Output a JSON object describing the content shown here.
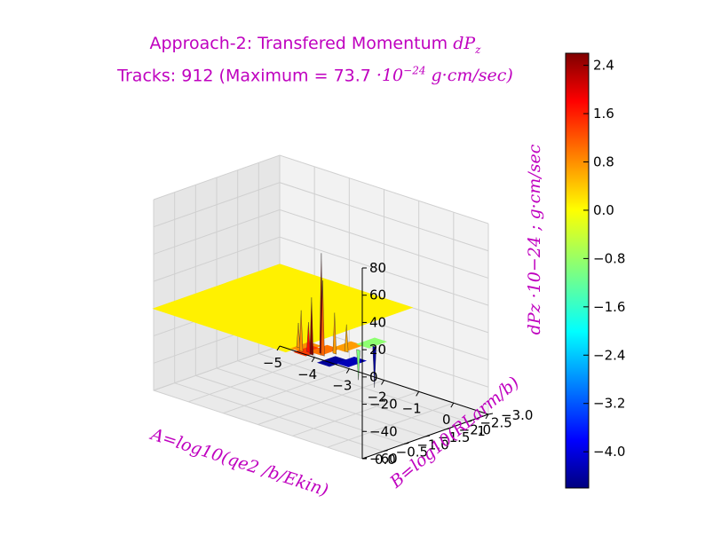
{
  "chart_data": {
    "type": "surface3d",
    "title_line1_text": "Approach-2: Transfered Momentum ",
    "title_line1_math": "dP",
    "title_line1_math_sub": "z",
    "title_line2_text": "Tracks: 912 (Maximum =  73.7 ",
    "title_line2_math_a": "·10",
    "title_line2_math_exp": "−24",
    "title_line2_math_b": " g·cm/sec)",
    "xlabel": "A=log10(qe2 /b/Ekin)",
    "ylabel": "B=log10(RLarm/b)",
    "zlabel": "dPz ·10−24 ; g·cm/sec",
    "x_ticks": [
      "−5",
      "−4",
      "−3",
      "−2",
      "−1",
      "0",
      "1"
    ],
    "x_tick_values": [
      -5,
      -4,
      -3,
      -2,
      -1,
      0,
      1
    ],
    "y_ticks": [
      "0.0",
      "−0.5",
      "−1.0",
      "−1.5",
      "−2.0",
      "−2.5",
      "−3.0"
    ],
    "y_tick_values": [
      0.0,
      -0.5,
      -1.0,
      -1.5,
      -2.0,
      -2.5,
      -3.0
    ],
    "z_ticks": [
      "80",
      "60",
      "40",
      "20",
      "0",
      "−20",
      "−40",
      "−60"
    ],
    "z_tick_values": [
      80,
      60,
      40,
      20,
      0,
      -20,
      -40,
      -60
    ],
    "xlim": [
      -5,
      1
    ],
    "ylim": [
      -3,
      0
    ],
    "zlim": [
      -60,
      80
    ],
    "colorbar_ticks": [
      "2.4",
      "1.6",
      "0.8",
      "0.0",
      "−0.8",
      "−1.6",
      "−2.4",
      "−3.2",
      "−4.0"
    ],
    "colorbar_values": [
      2.4,
      1.6,
      0.8,
      0.0,
      -0.8,
      -1.6,
      -2.4,
      -3.2,
      -4.0
    ],
    "colorbar_range": [
      -4.6,
      2.6
    ],
    "colormap": "jet",
    "title_color": "#bf00bf",
    "surface": {
      "base_region": {
        "x": [
          -5,
          -1.2
        ],
        "y": [
          -3,
          0
        ],
        "z": 0,
        "color_value": 0.0
      },
      "patches": [
        {
          "x": -1.1,
          "y": -0.4,
          "z": 0,
          "color_value": 0.7
        },
        {
          "x": -0.9,
          "y": -0.3,
          "z": 0,
          "color_value": 1.3
        },
        {
          "x": -0.7,
          "y": -0.5,
          "z": 0,
          "color_value": 0.9
        },
        {
          "x": -0.5,
          "y": -0.9,
          "z": 0,
          "color_value": 0.6
        },
        {
          "x": -0.3,
          "y": -1.3,
          "z": 0,
          "color_value": -0.9
        },
        {
          "x": -0.1,
          "y": -0.2,
          "z": 0,
          "color_value": -4.4
        },
        {
          "x": 0.2,
          "y": -0.4,
          "z": 0,
          "color_value": -4.2
        }
      ],
      "spikes": [
        {
          "x": -1.2,
          "y": -0.3,
          "z": 18,
          "color_value": 0.6
        },
        {
          "x": -1.0,
          "y": -0.2,
          "z": 30,
          "color_value": 0.7
        },
        {
          "x": -0.85,
          "y": -0.25,
          "z": 22,
          "color_value": 1.6
        },
        {
          "x": -0.7,
          "y": -0.2,
          "z": 42,
          "color_value": 2.6
        },
        {
          "x": -0.6,
          "y": -0.35,
          "z": 73.7,
          "color_value": 2.6
        },
        {
          "x": -0.5,
          "y": -0.3,
          "z": 55,
          "color_value": 1.0
        },
        {
          "x": -0.4,
          "y": -0.5,
          "z": 30,
          "color_value": 0.6
        },
        {
          "x": -0.3,
          "y": -0.7,
          "z": 20,
          "color_value": 0.5
        },
        {
          "x": -0.2,
          "y": -0.9,
          "z": -22,
          "color_value": -1.0
        },
        {
          "x": -0.1,
          "y": -1.2,
          "z": -30,
          "color_value": -4.4
        }
      ]
    }
  }
}
